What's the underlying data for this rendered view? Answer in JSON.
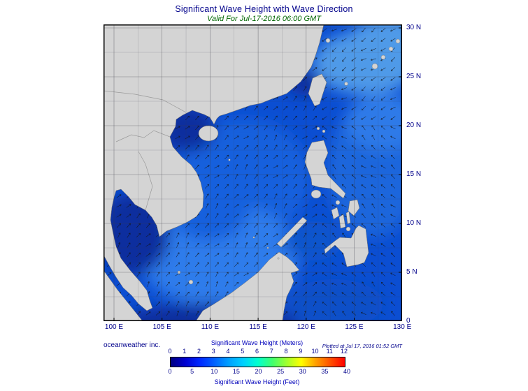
{
  "header": {
    "title": "Significant Wave Height with Wave Direction",
    "subtitle": "Valid For Jul-17-2016 06:00 GMT"
  },
  "footer": {
    "credit": "oceanweather inc.",
    "plotted": "Plotted at Jul 17, 2016 01:52 GMT"
  },
  "axes": {
    "lon_ticks": [
      "100 E",
      "105 E",
      "110 E",
      "115 E",
      "120 E",
      "125 E",
      "130 E"
    ],
    "lat_ticks": [
      "0",
      "5 N",
      "10 N",
      "15 N",
      "20 N",
      "25 N",
      "30 N"
    ]
  },
  "colorbar": {
    "meters_label": "Significant Wave Height (Meters)",
    "feet_label": "Significant Wave Height (Feet)",
    "meters_ticks": [
      "0",
      "1",
      "2",
      "3",
      "4",
      "5",
      "6",
      "7",
      "8",
      "9",
      "10",
      "11",
      "12"
    ],
    "feet_ticks": [
      "0",
      "5",
      "10",
      "15",
      "20",
      "25",
      "30",
      "35",
      "40"
    ],
    "colors": [
      "#000080",
      "#0000d0",
      "#0028ff",
      "#0060ff",
      "#00a0ff",
      "#00d0ff",
      "#00ffd0",
      "#40ff70",
      "#a0ff30",
      "#ffff00",
      "#ffa000",
      "#ff5000",
      "#ff0000"
    ]
  },
  "map": {
    "land_color": "#d4d4d4",
    "coast_color": "#6e6e6e",
    "grid_color": "#3a3a46",
    "arrow_color": "#141414",
    "border_color": "#000000",
    "ocean": {
      "base": "#0b4ed2",
      "mid": "#1560dd",
      "mid2": "#1b66dc",
      "bright": "#2e7ceb",
      "bright2": "#2d7ae8",
      "light": "#4f9ae8",
      "dark": "#0a2f9e",
      "sulu": "#1155cc",
      "celebes": "#0f4fc8"
    },
    "wave_directions": {
      "south_china_sea_deg": 48,
      "southern_deg": 55,
      "philippine_sea_deg": 140,
      "east_of_taiwan_deg": 215
    }
  }
}
